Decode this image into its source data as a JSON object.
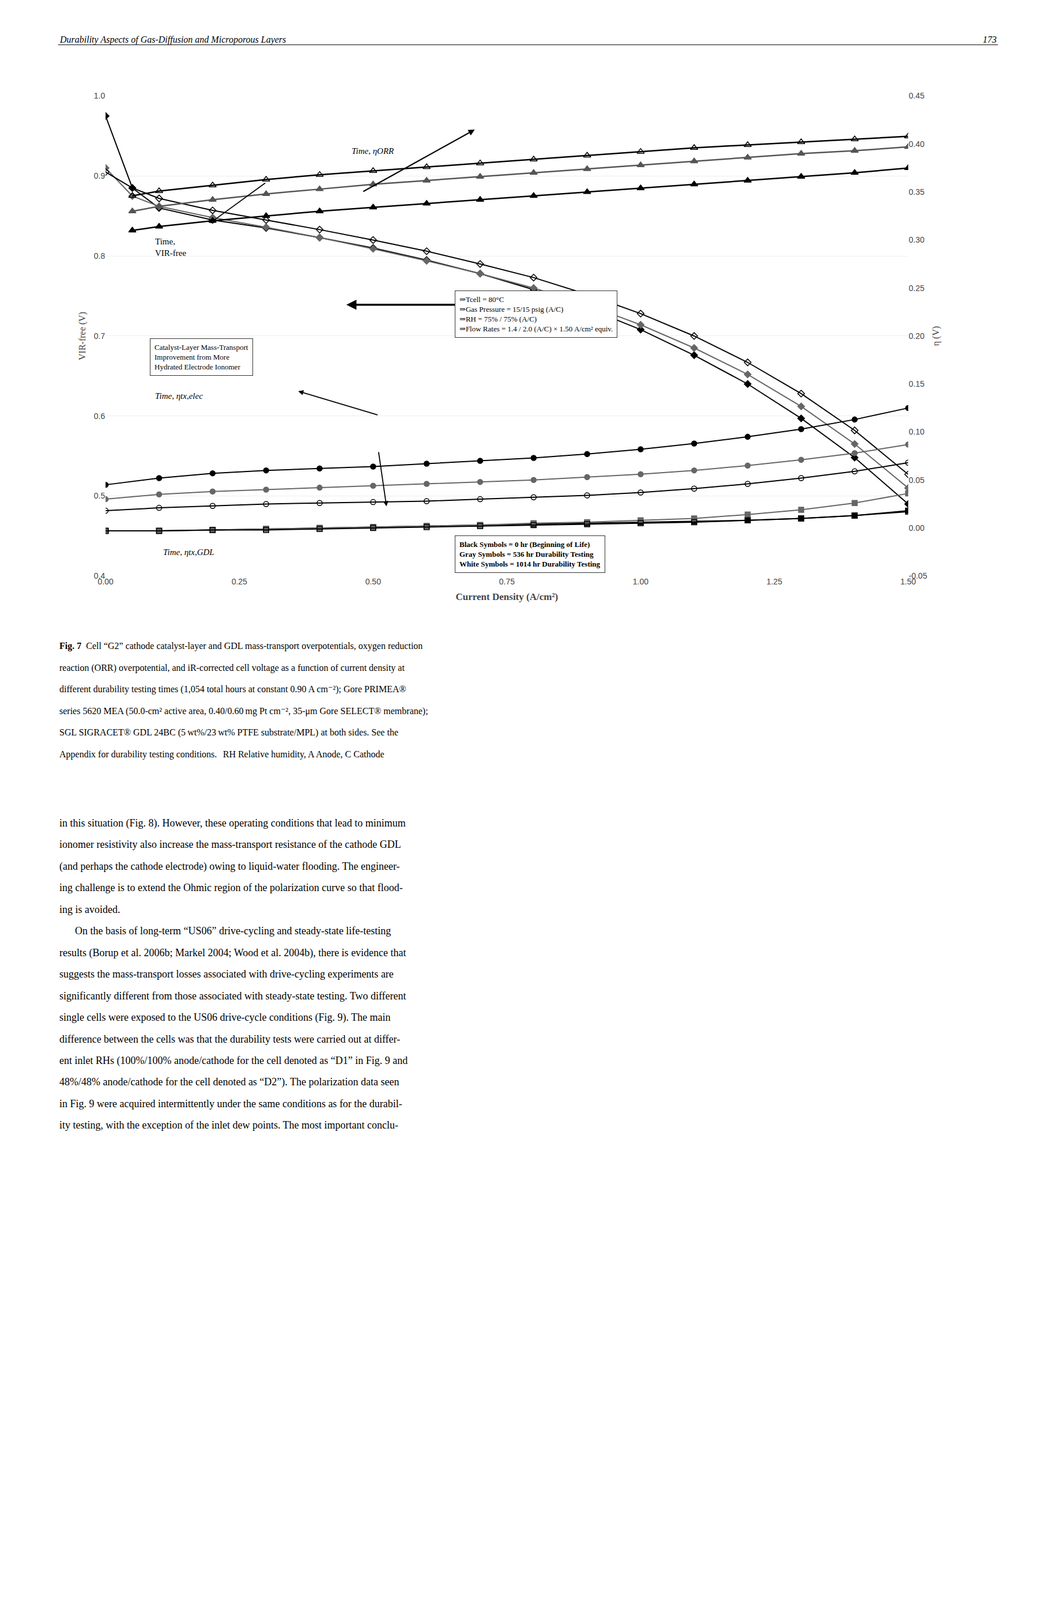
{
  "header": [
    "Durability Aspects of Gas-Diffusion and Microporous Layers",
    "173"
  ],
  "chart_data": {
    "type": "line",
    "x_label": "Current Density (A/cm²)",
    "y_label": "VIR-free (V)",
    "y2_label": "η (V)",
    "xlim": [
      0.0,
      1.5
    ],
    "xticks": [
      {
        "value": 0,
        "label": "0.00"
      },
      0.25,
      {
        "value": 0.5,
        "label": "0.50"
      },
      0.75,
      {
        "value": 1,
        "label": "1.00"
      },
      1.25,
      {
        "value": 1.5,
        "label": "1.50"
      }
    ],
    "ylim": [
      0.4,
      1.0
    ],
    "yticks": [
      0.4,
      0.5,
      0.6,
      0.7,
      0.8,
      0.9,
      {
        "value": 1,
        "label": "1.0"
      }
    ],
    "y2lim": [
      -0.05,
      0.45
    ],
    "y2ticks": [
      -0.05,
      {
        "value": 0,
        "label": "0.00"
      },
      0.05,
      {
        "value": 0.1,
        "label": "0.10"
      },
      0.15,
      {
        "value": 0.2,
        "label": "0.20"
      },
      0.25,
      {
        "value": 0.3,
        "label": "0.30"
      },
      0.35,
      {
        "value": 0.4,
        "label": "0.40"
      },
      0.45
    ],
    "grid": "y",
    "series": [
      {
        "color": "black",
        "marker": "diamond",
        "axis": "y",
        "x": [
          0.0,
          0.05,
          0.1,
          0.2,
          0.3,
          0.4,
          0.5,
          0.6,
          0.7,
          0.8,
          0.9,
          1.0,
          1.1,
          1.2,
          1.3,
          1.4,
          1.5
        ],
        "values": [
          0.975,
          0.885,
          0.86,
          0.845,
          0.835,
          0.823,
          0.81,
          0.795,
          0.778,
          0.758,
          0.735,
          0.708,
          0.676,
          0.64,
          0.597,
          0.548,
          0.49
        ]
      },
      {
        "color": "#666666",
        "marker": "diamond",
        "axis": "y",
        "x": [
          0.0,
          0.05,
          0.1,
          0.2,
          0.3,
          0.4,
          0.5,
          0.6,
          0.7,
          0.8,
          0.9,
          1.0,
          1.1,
          1.2,
          1.3,
          1.4,
          1.5
        ],
        "values": [
          0.91,
          0.875,
          0.862,
          0.848,
          0.836,
          0.823,
          0.809,
          0.794,
          0.778,
          0.76,
          0.739,
          0.714,
          0.685,
          0.652,
          0.612,
          0.565,
          0.51
        ]
      },
      {
        "color": "black",
        "marker": "diamond-open",
        "axis": "y",
        "x": [
          0.0,
          0.05,
          0.1,
          0.2,
          0.3,
          0.4,
          0.5,
          0.6,
          0.7,
          0.8,
          0.9,
          1.0,
          1.1,
          1.2,
          1.3,
          1.4,
          1.5
        ],
        "values": [
          0.905,
          0.885,
          0.872,
          0.857,
          0.845,
          0.833,
          0.82,
          0.806,
          0.79,
          0.773,
          0.752,
          0.728,
          0.7,
          0.667,
          0.628,
          0.582,
          0.527
        ]
      },
      {
        "color": "black",
        "marker": "triangle-up",
        "axis": "y2",
        "x": [
          0.05,
          0.1,
          0.2,
          0.3,
          0.4,
          0.5,
          0.6,
          0.7,
          0.8,
          0.9,
          1.0,
          1.1,
          1.2,
          1.3,
          1.4,
          1.5
        ],
        "values": [
          0.31,
          0.314,
          0.32,
          0.325,
          0.33,
          0.334,
          0.338,
          0.342,
          0.346,
          0.35,
          0.354,
          0.358,
          0.362,
          0.366,
          0.37,
          0.375
        ]
      },
      {
        "color": "#555555",
        "marker": "triangle-up",
        "axis": "y2",
        "x": [
          0.05,
          0.1,
          0.2,
          0.3,
          0.4,
          0.5,
          0.6,
          0.7,
          0.8,
          0.9,
          1.0,
          1.1,
          1.2,
          1.3,
          1.4,
          1.5
        ],
        "values": [
          0.33,
          0.335,
          0.342,
          0.348,
          0.353,
          0.358,
          0.362,
          0.366,
          0.37,
          0.374,
          0.378,
          0.382,
          0.386,
          0.39,
          0.393,
          0.397
        ]
      },
      {
        "color": "black",
        "marker": "triangle-up-open",
        "axis": "y2",
        "x": [
          0.05,
          0.1,
          0.2,
          0.3,
          0.4,
          0.5,
          0.6,
          0.7,
          0.8,
          0.9,
          1.0,
          1.1,
          1.2,
          1.3,
          1.4,
          1.5
        ],
        "values": [
          0.346,
          0.351,
          0.357,
          0.363,
          0.368,
          0.372,
          0.376,
          0.38,
          0.384,
          0.388,
          0.392,
          0.396,
          0.399,
          0.402,
          0.405,
          0.408
        ]
      },
      {
        "color": "black",
        "marker": "circle",
        "axis": "y2",
        "x": [
          0.0,
          0.1,
          0.2,
          0.3,
          0.4,
          0.5,
          0.6,
          0.7,
          0.8,
          0.9,
          1.0,
          1.1,
          1.2,
          1.3,
          1.4,
          1.5
        ],
        "values": [
          0.045,
          0.052,
          0.057,
          0.06,
          0.062,
          0.064,
          0.067,
          0.07,
          0.073,
          0.077,
          0.082,
          0.088,
          0.095,
          0.103,
          0.113,
          0.125
        ]
      },
      {
        "color": "#666666",
        "marker": "circle",
        "axis": "y2",
        "x": [
          0.0,
          0.1,
          0.2,
          0.3,
          0.4,
          0.5,
          0.6,
          0.7,
          0.8,
          0.9,
          1.0,
          1.1,
          1.2,
          1.3,
          1.4,
          1.5
        ],
        "values": [
          0.03,
          0.035,
          0.038,
          0.04,
          0.042,
          0.044,
          0.046,
          0.048,
          0.05,
          0.053,
          0.056,
          0.06,
          0.065,
          0.071,
          0.078,
          0.087
        ]
      },
      {
        "color": "black",
        "marker": "circle-open",
        "axis": "y2",
        "x": [
          0.0,
          0.1,
          0.2,
          0.3,
          0.4,
          0.5,
          0.6,
          0.7,
          0.8,
          0.9,
          1.0,
          1.1,
          1.2,
          1.3,
          1.4,
          1.5
        ],
        "values": [
          0.018,
          0.021,
          0.023,
          0.025,
          0.026,
          0.027,
          0.028,
          0.03,
          0.032,
          0.034,
          0.037,
          0.041,
          0.046,
          0.052,
          0.059,
          0.068
        ]
      },
      {
        "color": "black",
        "marker": "square",
        "axis": "y2",
        "x": [
          0.0,
          0.1,
          0.2,
          0.3,
          0.4,
          0.5,
          0.6,
          0.7,
          0.8,
          0.9,
          1.0,
          1.1,
          1.2,
          1.3,
          1.4,
          1.5
        ],
        "values": [
          -0.003,
          -0.003,
          -0.002,
          -0.001,
          0.0,
          0.001,
          0.002,
          0.003,
          0.004,
          0.005,
          0.006,
          0.007,
          0.008,
          0.01,
          0.013,
          0.018
        ]
      },
      {
        "color": "#666666",
        "marker": "square",
        "axis": "y2",
        "x": [
          0.0,
          0.1,
          0.2,
          0.3,
          0.4,
          0.5,
          0.6,
          0.7,
          0.8,
          0.9,
          1.0,
          1.1,
          1.2,
          1.3,
          1.4,
          1.5
        ],
        "values": [
          -0.003,
          -0.003,
          -0.002,
          -0.001,
          0.0,
          0.001,
          0.002,
          0.003,
          0.005,
          0.006,
          0.008,
          0.01,
          0.014,
          0.019,
          0.026,
          0.036
        ]
      },
      {
        "color": "black",
        "marker": "square-open",
        "axis": "y2",
        "x": [
          0.0,
          0.1,
          0.2,
          0.3,
          0.4,
          0.5,
          0.6,
          0.7,
          0.8,
          0.9,
          1.0,
          1.1,
          1.2,
          1.3,
          1.4,
          1.5
        ],
        "values": [
          -0.003,
          -0.003,
          -0.002,
          -0.002,
          -0.001,
          0.0,
          0.001,
          0.002,
          0.003,
          0.004,
          0.005,
          0.006,
          0.008,
          0.01,
          0.013,
          0.017
        ]
      }
    ],
    "annotations": [
      "Time,\nVIR-free",
      "Time, ηORR",
      "Time, ηtx,elec",
      "Time, ηtx,GDL"
    ],
    "text_boxes": [
      [
        "⇒Tcell = 80°C",
        "⇒Gas Pressure = 15/15 psig (A/C)",
        "⇒RH = 75% / 75% (A/C)",
        "⇒Flow Rates = 1.4 / 2.0 (A/C) × 1.50 A/cm² equiv."
      ],
      [
        "Black Symbols = 0 hr (Beginning of Life)",
        "Gray Symbols = 536 hr Durability Testing",
        "White Symbols = 1014 hr Durability Testing"
      ],
      [
        "Catalyst-Layer Mass-Transport",
        "Improvement from More",
        "Hydrated Electrode Ionomer"
      ]
    ]
  },
  "caption_label": "Fig. 7",
  "caption": [
    "Cell “G2” cathode catalyst-layer and GDL mass-transport overpotentials, oxygen reduction",
    "reaction (ORR) overpotential, and iR-corrected cell voltage as a function of current density at",
    "different durability testing times (1,054 total hours at constant 0.90 A cm⁻²); Gore PRIMEA®",
    "series 5620 MEA (50.0-cm² active area, 0.40/0.60 mg Pt cm⁻², 35-μm Gore SELECT® membrane);",
    "SGL SIGRACET® GDL 24BC (5 wt%/23 wt% PTFE substrate/MPL) at both sides. See the",
    "Appendix for durability testing conditions.   RH Relative humidity, A Anode, C Cathode"
  ],
  "body": [
    "in this situation (Fig. 8). However, these operating conditions that lead to minimum",
    "ionomer resistivity also increase the mass-transport resistance of the cathode GDL",
    "(and perhaps the cathode electrode) owing to liquid-water flooding. The engineer-",
    "ing challenge is to extend the Ohmic region of the polarization curve so that flood-",
    "ing is avoided.",
    "   On the basis of long-term “US06” drive-cycling and steady-state life-testing",
    "results (Borup et al. 2006b; Markel 2004; Wood et al. 2004b), there is evidence that",
    "suggests the mass-transport losses associated with drive-cycling experiments are",
    "significantly different from those associated with steady-state testing. Two different",
    "single cells were exposed to the US06 drive-cycle conditions (Fig. 9). The main",
    "difference between the cells was that the durability tests were carried out at differ-",
    "ent inlet RHs (100%/100% anode/cathode for the cell denoted as “D1” in Fig. 9 and",
    "48%/48% anode/cathode for the cell denoted as “D2”). The polarization data seen",
    "in Fig. 9 were acquired intermittently under the same conditions as for the durabil-",
    "ity testing, with the exception of the inlet dew points. The most important conclu-"
  ]
}
